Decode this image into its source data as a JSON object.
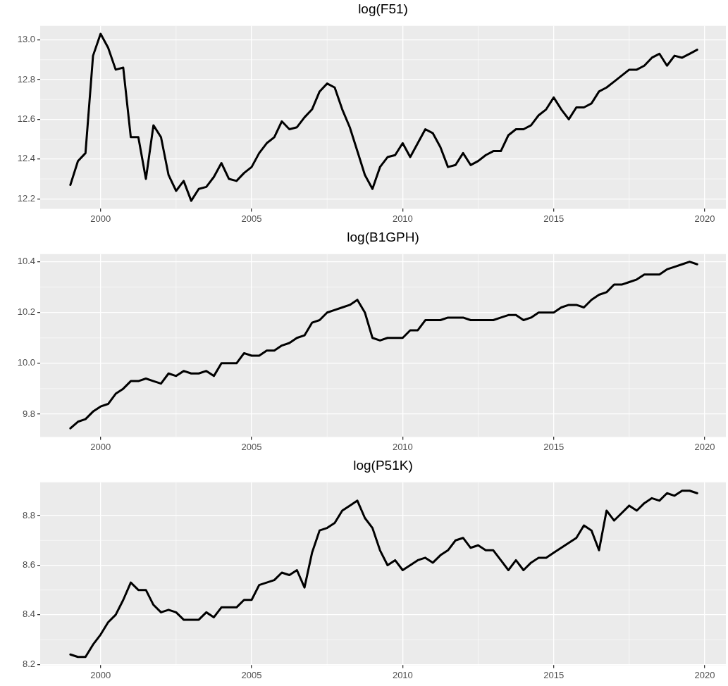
{
  "chart_data": [
    {
      "type": "line",
      "title": "log(F51)",
      "color": "#000000",
      "grid": true,
      "x": [
        1999,
        1999.25,
        1999.5,
        1999.75,
        2000,
        2000.25,
        2000.5,
        2000.75,
        2001,
        2001.25,
        2001.5,
        2001.75,
        2002,
        2002.25,
        2002.5,
        2002.75,
        2003,
        2003.25,
        2003.5,
        2003.75,
        2004,
        2004.25,
        2004.5,
        2004.75,
        2005,
        2005.25,
        2005.5,
        2005.75,
        2006,
        2006.25,
        2006.5,
        2006.75,
        2007,
        2007.25,
        2007.5,
        2007.75,
        2008,
        2008.25,
        2008.5,
        2008.75,
        2009,
        2009.25,
        2009.5,
        2009.75,
        2010,
        2010.25,
        2010.5,
        2010.75,
        2011,
        2011.25,
        2011.5,
        2011.75,
        2012,
        2012.25,
        2012.5,
        2012.75,
        2013,
        2013.25,
        2013.5,
        2013.75,
        2014,
        2014.25,
        2014.5,
        2014.75,
        2015,
        2015.25,
        2015.5,
        2015.75,
        2016,
        2016.25,
        2016.5,
        2016.75,
        2017,
        2017.25,
        2017.5,
        2017.75,
        2018,
        2018.25,
        2018.5,
        2018.75,
        2019,
        2019.25,
        2019.5,
        2019.75
      ],
      "values": [
        12.27,
        12.39,
        12.43,
        12.92,
        13.03,
        12.96,
        12.85,
        12.86,
        12.51,
        12.51,
        12.3,
        12.57,
        12.51,
        12.32,
        12.24,
        12.29,
        12.19,
        12.25,
        12.26,
        12.31,
        12.38,
        12.3,
        12.29,
        12.33,
        12.36,
        12.43,
        12.48,
        12.51,
        12.59,
        12.55,
        12.56,
        12.61,
        12.65,
        12.74,
        12.78,
        12.76,
        12.65,
        12.56,
        12.44,
        12.32,
        12.25,
        12.36,
        12.41,
        12.42,
        12.48,
        12.41,
        12.48,
        12.55,
        12.53,
        12.46,
        12.36,
        12.37,
        12.43,
        12.37,
        12.39,
        12.42,
        12.44,
        12.44,
        12.52,
        12.55,
        12.55,
        12.57,
        12.62,
        12.65,
        12.71,
        12.65,
        12.6,
        12.66,
        12.66,
        12.68,
        12.74,
        12.76,
        12.79,
        12.82,
        12.85,
        12.85,
        12.87,
        12.91,
        12.93,
        12.87,
        12.92,
        12.91,
        12.93,
        12.95
      ],
      "xlim": [
        1998,
        2020.7
      ],
      "xticks": [
        2000,
        2005,
        2010,
        2015,
        2020
      ],
      "ylim": [
        12.15,
        13.07
      ],
      "yticks": [
        12.2,
        12.4,
        12.6,
        12.8,
        {
          "value": 13,
          "label": "13.0"
        }
      ]
    },
    {
      "type": "line",
      "title": "log(B1GPH)",
      "color": "#000000",
      "grid": true,
      "x": [
        1999,
        1999.25,
        1999.5,
        1999.75,
        2000,
        2000.25,
        2000.5,
        2000.75,
        2001,
        2001.25,
        2001.5,
        2001.75,
        2002,
        2002.25,
        2002.5,
        2002.75,
        2003,
        2003.25,
        2003.5,
        2003.75,
        2004,
        2004.25,
        2004.5,
        2004.75,
        2005,
        2005.25,
        2005.5,
        2005.75,
        2006,
        2006.25,
        2006.5,
        2006.75,
        2007,
        2007.25,
        2007.5,
        2007.75,
        2008,
        2008.25,
        2008.5,
        2008.75,
        2009,
        2009.25,
        2009.5,
        2009.75,
        2010,
        2010.25,
        2010.5,
        2010.75,
        2011,
        2011.25,
        2011.5,
        2011.75,
        2012,
        2012.25,
        2012.5,
        2012.75,
        2013,
        2013.25,
        2013.5,
        2013.75,
        2014,
        2014.25,
        2014.5,
        2014.75,
        2015,
        2015.25,
        2015.5,
        2015.75,
        2016,
        2016.25,
        2016.5,
        2016.75,
        2017,
        2017.25,
        2017.5,
        2017.75,
        2018,
        2018.25,
        2018.5,
        2018.75,
        2019,
        2019.25,
        2019.5,
        2019.75
      ],
      "values": [
        9.744,
        9.77,
        9.78,
        9.81,
        9.83,
        9.84,
        9.88,
        9.9,
        9.93,
        9.93,
        9.94,
        9.93,
        9.92,
        9.96,
        9.95,
        9.97,
        9.96,
        9.96,
        9.97,
        9.95,
        10.0,
        10.0,
        10.0,
        10.04,
        10.03,
        10.03,
        10.05,
        10.05,
        10.07,
        10.08,
        10.1,
        10.11,
        10.16,
        10.17,
        10.2,
        10.21,
        10.22,
        10.23,
        10.25,
        10.2,
        10.1,
        10.09,
        10.1,
        10.1,
        10.1,
        10.13,
        10.13,
        10.17,
        10.17,
        10.17,
        10.18,
        10.18,
        10.18,
        10.17,
        10.17,
        10.17,
        10.17,
        10.18,
        10.19,
        10.19,
        10.17,
        10.18,
        10.2,
        10.2,
        10.2,
        10.22,
        10.23,
        10.23,
        10.22,
        10.25,
        10.27,
        10.28,
        10.31,
        10.31,
        10.32,
        10.33,
        10.35,
        10.35,
        10.35,
        10.37,
        10.38,
        10.39,
        10.4,
        10.39
      ],
      "xlim": [
        1998,
        2020.7
      ],
      "xticks": [
        2000,
        2005,
        2010,
        2015,
        2020
      ],
      "ylim": [
        9.71,
        10.43
      ],
      "yticks": [
        9.8,
        {
          "value": 10,
          "label": "10.0"
        },
        10.2,
        10.4
      ]
    },
    {
      "type": "line",
      "title": "log(P51K)",
      "color": "#000000",
      "grid": true,
      "x": [
        1999,
        1999.25,
        1999.5,
        1999.75,
        2000,
        2000.25,
        2000.5,
        2000.75,
        2001,
        2001.25,
        2001.5,
        2001.75,
        2002,
        2002.25,
        2002.5,
        2002.75,
        2003,
        2003.25,
        2003.5,
        2003.75,
        2004,
        2004.25,
        2004.5,
        2004.75,
        2005,
        2005.25,
        2005.5,
        2005.75,
        2006,
        2006.25,
        2006.5,
        2006.75,
        2007,
        2007.25,
        2007.5,
        2007.75,
        2008,
        2008.25,
        2008.5,
        2008.75,
        2009,
        2009.25,
        2009.5,
        2009.75,
        2010,
        2010.25,
        2010.5,
        2010.75,
        2011,
        2011.25,
        2011.5,
        2011.75,
        2012,
        2012.25,
        2012.5,
        2012.75,
        2013,
        2013.25,
        2013.5,
        2013.75,
        2014,
        2014.25,
        2014.5,
        2014.75,
        2015,
        2015.25,
        2015.5,
        2015.75,
        2016,
        2016.25,
        2016.5,
        2016.75,
        2017,
        2017.25,
        2017.5,
        2017.75,
        2018,
        2018.25,
        2018.5,
        2018.75,
        2019,
        2019.25,
        2019.5,
        2019.75
      ],
      "values": [
        8.24,
        8.23,
        8.23,
        8.28,
        8.32,
        8.37,
        8.4,
        8.46,
        8.53,
        8.5,
        8.5,
        8.44,
        8.41,
        8.42,
        8.41,
        8.38,
        8.38,
        8.38,
        8.41,
        8.39,
        8.43,
        8.43,
        8.43,
        8.46,
        8.46,
        8.52,
        8.53,
        8.54,
        8.57,
        8.56,
        8.58,
        8.51,
        8.65,
        8.74,
        8.75,
        8.77,
        8.82,
        8.84,
        8.86,
        8.79,
        8.75,
        8.66,
        8.6,
        8.62,
        8.58,
        8.6,
        8.62,
        8.63,
        8.61,
        8.64,
        8.66,
        8.7,
        8.71,
        8.67,
        8.68,
        8.66,
        8.66,
        8.62,
        8.58,
        8.62,
        8.58,
        8.61,
        8.63,
        8.63,
        8.65,
        8.67,
        8.69,
        8.71,
        8.76,
        8.74,
        8.66,
        8.82,
        8.78,
        8.81,
        8.84,
        8.82,
        8.85,
        8.87,
        8.86,
        8.89,
        8.88,
        8.9,
        8.9,
        8.89
      ],
      "xlim": [
        1998,
        2020.7
      ],
      "xticks": [
        2000,
        2005,
        2010,
        2015,
        2020
      ],
      "ylim": [
        8.197,
        8.934
      ],
      "yticks": [
        8.2,
        8.4,
        8.6,
        8.8
      ]
    }
  ]
}
